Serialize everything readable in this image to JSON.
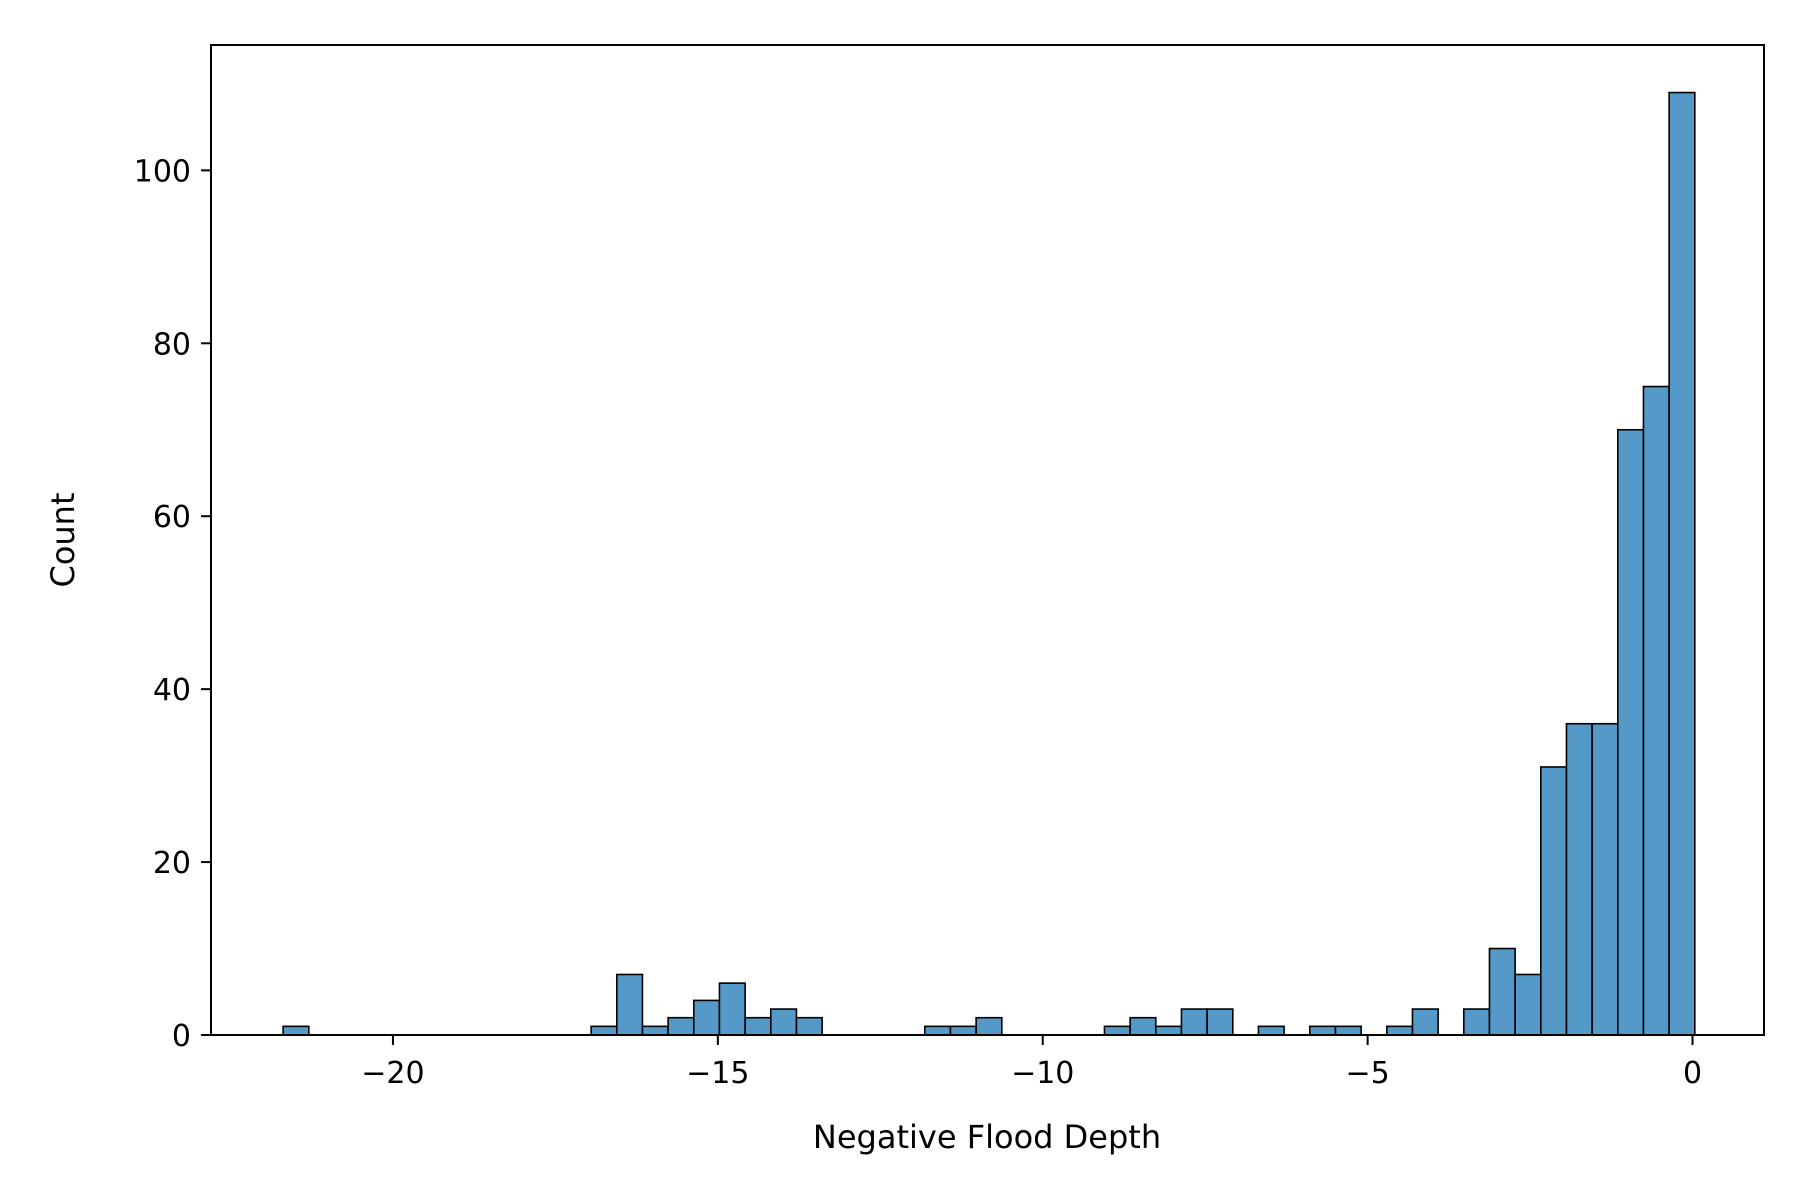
{
  "chart_data": {
    "type": "bar",
    "subtype": "histogram",
    "title": "",
    "xlabel": "Negative Flood Depth",
    "ylabel": "Count",
    "xlim": [
      -22.8,
      1.1
    ],
    "ylim": [
      0,
      114.5
    ],
    "xticks": [
      -20,
      -15,
      -10,
      -5,
      0
    ],
    "xtick_labels": [
      "−20",
      "−15",
      "−10",
      "−5",
      "0"
    ],
    "yticks": [
      0,
      20,
      40,
      60,
      80,
      100
    ],
    "ytick_labels": [
      "0",
      "20",
      "40",
      "60",
      "80",
      "100"
    ],
    "grid": false,
    "bar_color": "#5499c7",
    "edge_color": "#000000",
    "bin_width": 0.395,
    "bin_starts": [
      -21.69,
      -16.95,
      -16.555,
      -16.16,
      -15.765,
      -15.37,
      -14.975,
      -14.58,
      -14.185,
      -13.79,
      -11.815,
      -11.42,
      -11.025,
      -9.05,
      -8.655,
      -8.26,
      -7.865,
      -7.47,
      -6.68,
      -5.89,
      -5.495,
      -4.705,
      -4.31,
      -3.52,
      -3.125,
      -2.73,
      -2.335,
      -1.94,
      -1.545,
      -1.15,
      -0.755,
      -0.36
    ],
    "values": [
      1,
      1,
      7,
      1,
      2,
      4,
      6,
      2,
      3,
      2,
      1,
      1,
      2,
      1,
      2,
      1,
      3,
      3,
      1,
      1,
      1,
      1,
      3,
      3,
      10,
      7,
      31,
      36,
      36,
      70,
      75,
      109
    ]
  }
}
